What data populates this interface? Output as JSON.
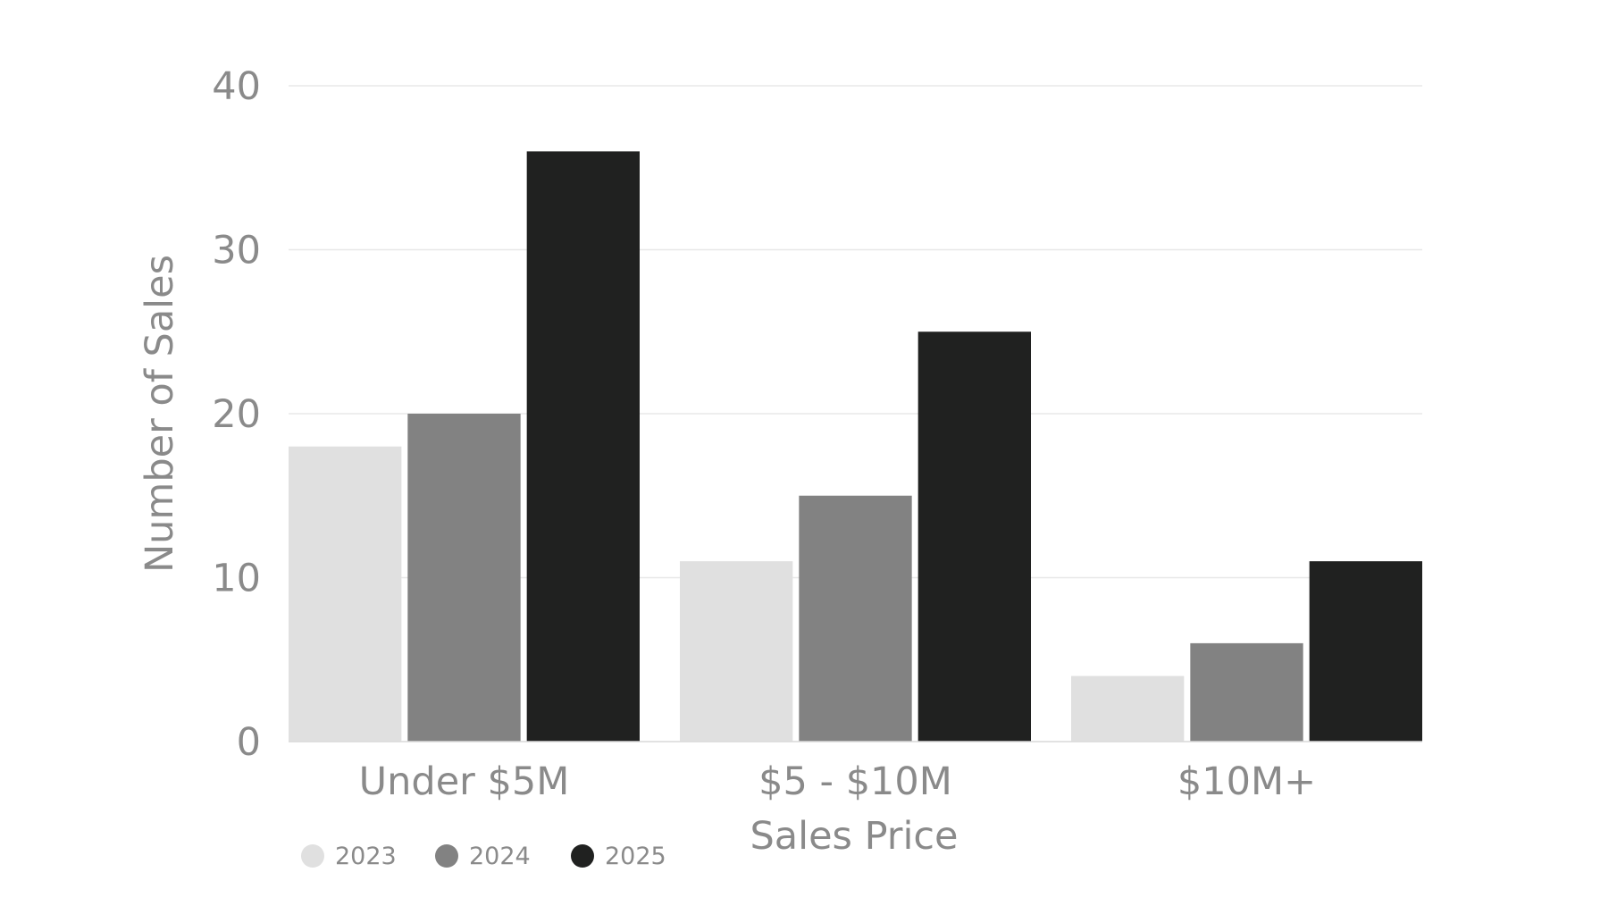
{
  "chart_data": {
    "type": "bar",
    "categories": [
      "Under $5M",
      "$5 - $10M",
      "$10M+"
    ],
    "series": [
      {
        "name": "2023",
        "values": [
          18,
          11,
          4
        ],
        "color": "#e0e0e0"
      },
      {
        "name": "2024",
        "values": [
          20,
          15,
          6
        ],
        "color": "#828282"
      },
      {
        "name": "2025",
        "values": [
          36,
          25,
          11
        ],
        "color": "#202120"
      }
    ],
    "title": "",
    "xlabel": "Sales Price",
    "ylabel": "Number of Sales",
    "ylim": [
      0,
      40
    ],
    "yticks": [
      "0",
      "10",
      "20",
      "30",
      "40"
    ],
    "grid": true,
    "legend_position": "bottom-left",
    "colors": {
      "text": "#8a8a8a",
      "grid": "#e8e8e8",
      "axis": "#d9d9d9"
    }
  }
}
